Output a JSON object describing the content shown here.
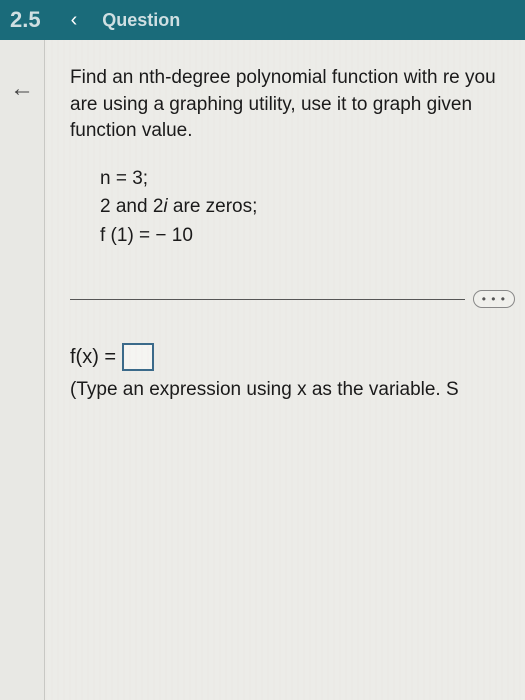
{
  "header": {
    "section_number": "2.5",
    "title": "Question"
  },
  "problem": {
    "instruction": "Find an nth-degree polynomial function with re you are using a graphing utility, use it to graph given function value.",
    "line1": "n = 3;",
    "line2_prefix": "2 and 2",
    "line2_i": "i",
    "line2_suffix": " are zeros;",
    "line3": "f (1) = − 10"
  },
  "answer": {
    "prefix": "f(x) =",
    "hint": "(Type an expression using x as the variable. S"
  },
  "ellipsis": "• • •",
  "colors": {
    "header_bg": "#1a6b7a",
    "content_bg": "#ecece8",
    "text": "#1a1a1a",
    "box_border": "#3a6a8a"
  }
}
